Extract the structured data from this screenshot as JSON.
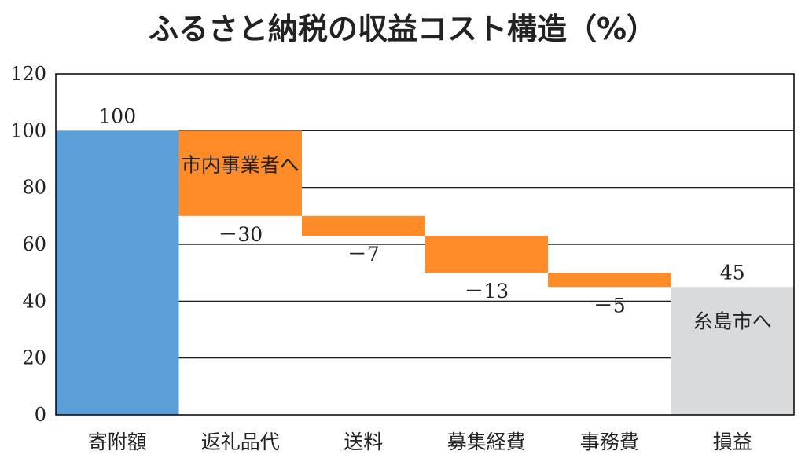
{
  "chart_data": {
    "type": "bar",
    "subtype": "waterfall",
    "title": "ふるさと納税の収益コスト構造（%）",
    "xlabel": "",
    "ylabel": "",
    "ylim": [
      0,
      120
    ],
    "yticks": [
      "0",
      "20",
      "40",
      "60",
      "80",
      "100",
      "120"
    ],
    "grid": true,
    "categories": [
      "寄附額",
      "返礼品代",
      "送料",
      "募集経費",
      "事務費",
      "損益"
    ],
    "values": [
      100,
      -30,
      -7,
      -13,
      -5,
      45
    ],
    "value_labels": [
      "100",
      "－30",
      "－7",
      "－13",
      "－5",
      "45"
    ],
    "annotations": [
      "市内事業者へ",
      "糸島市へ"
    ],
    "colors": {
      "total": "#5b9fd9",
      "cost": "#ff8c28",
      "result": "#d9dadc",
      "grid": "#000000"
    }
  }
}
